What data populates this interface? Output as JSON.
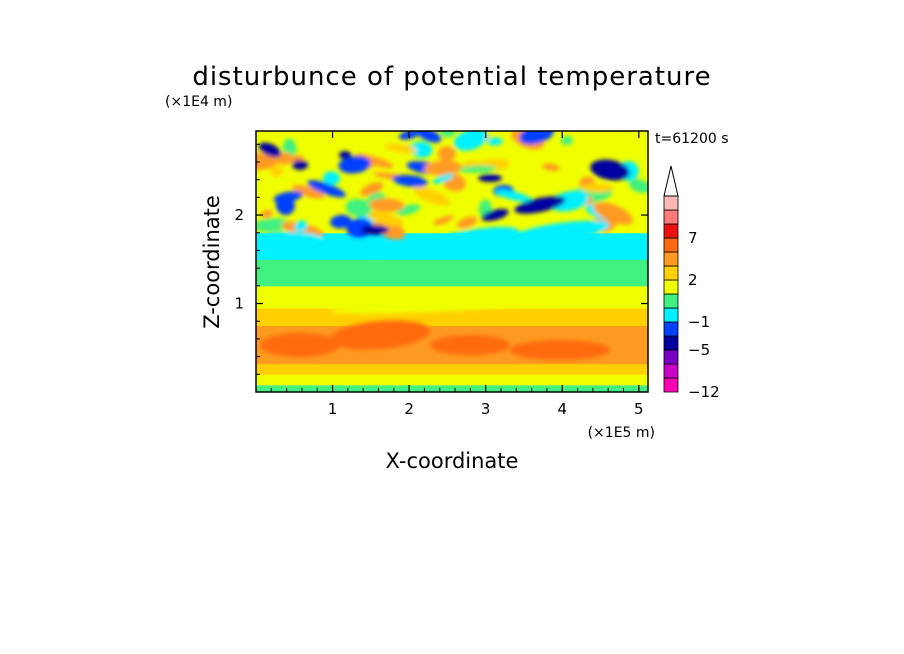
{
  "chart_data": {
    "type": "heatmap",
    "title": "disturbunce of potential temperature",
    "xlabel": "X-coordinate",
    "ylabel": "Z-coordinate",
    "x_unit": "(×1E5 m)",
    "y_unit": "(×1E4 m)",
    "time_label": "t=61200 s",
    "xlim": [
      0,
      5.12
    ],
    "ylim": [
      0,
      2.95
    ],
    "x_ticks": [
      {
        "value": 1,
        "label": "1"
      },
      {
        "value": 2,
        "label": "2"
      },
      {
        "value": 3,
        "label": "3"
      },
      {
        "value": 4,
        "label": "4"
      },
      {
        "value": 5,
        "label": "5"
      }
    ],
    "y_ticks": [
      {
        "value": 1,
        "label": "1"
      },
      {
        "value": 2,
        "label": "2"
      }
    ],
    "colorbar": {
      "levels": [
        {
          "value": -12,
          "color": "#ff00b4"
        },
        {
          "value": -9,
          "color": "#c800c8"
        },
        {
          "value": -7,
          "color": "#7a00c8"
        },
        {
          "value": -5,
          "color": "#0000a0"
        },
        {
          "value": -3,
          "color": "#0040ff"
        },
        {
          "value": -1,
          "color": "#00f0ff"
        },
        {
          "value": 0,
          "color": "#40f080"
        },
        {
          "value": 1,
          "color": "#f0ff00"
        },
        {
          "value": 2,
          "color": "#ffd000"
        },
        {
          "value": 3,
          "color": "#ff9a20"
        },
        {
          "value": 5,
          "color": "#ff6a10"
        },
        {
          "value": 7,
          "color": "#ee1010"
        },
        {
          "value": 9,
          "color": "#ff7a7a"
        },
        {
          "value": 11,
          "color": "#ffb8b8"
        }
      ],
      "labels": [
        "7",
        "2",
        "−1",
        "−5",
        "−12"
      ],
      "top_extension_color": "#ffffff"
    },
    "field_layers": [
      {
        "z_range": [
          0.0,
          0.08
        ],
        "value": 0
      },
      {
        "z_range": [
          0.08,
          0.2
        ],
        "value": 1
      },
      {
        "z_range": [
          0.2,
          0.32
        ],
        "value": 2
      },
      {
        "z_range": [
          0.32,
          0.75
        ],
        "value": 3
      },
      {
        "z_range": [
          0.75,
          0.95
        ],
        "value": 2
      },
      {
        "z_range": [
          0.95,
          1.2
        ],
        "value": 1
      },
      {
        "z_range": [
          1.2,
          1.5
        ],
        "value": 0
      },
      {
        "z_range": [
          1.5,
          1.8
        ],
        "value": -1
      },
      {
        "z_range": [
          1.8,
          2.95
        ],
        "value": 1
      }
    ]
  }
}
